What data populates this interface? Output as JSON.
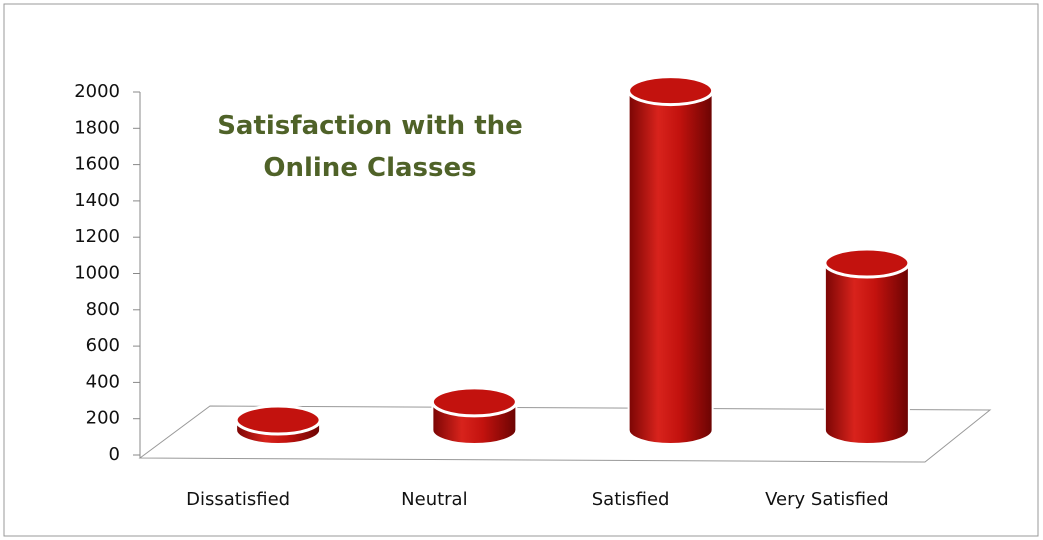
{
  "chart_data": {
    "type": "bar3d",
    "title": "Satisfaction with the Online Classes",
    "categories": [
      "Dissatisfied",
      "Neutral",
      "Satisfied",
      "Very Satisfied"
    ],
    "values": [
      55,
      155,
      1870,
      920
    ],
    "color": "#c3120e",
    "ylim": [
      0,
      2000
    ],
    "yticks": [
      0,
      200,
      400,
      600,
      800,
      1000,
      1200,
      1400,
      1600,
      1800,
      2000
    ]
  }
}
